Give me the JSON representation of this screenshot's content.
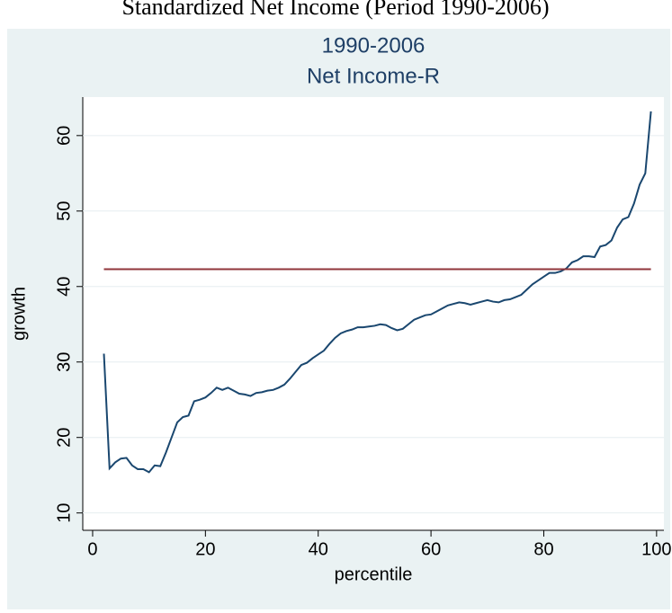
{
  "header": "Standardized Net Income (Period 1990-2006)",
  "chart_data": {
    "type": "line",
    "title": [
      "1990-2006",
      "Net Income-R"
    ],
    "x_label": "percentile",
    "y_label": "growth",
    "xlim": [
      -1.75,
      101.3
    ],
    "ylim": [
      7.7,
      65.1
    ],
    "xticks": [
      0,
      20,
      40,
      60,
      80,
      100
    ],
    "yticks": [
      10,
      20,
      30,
      40,
      50,
      60
    ],
    "grid": true,
    "series": [
      {
        "color": "#1a476f",
        "x": [
          2,
          3,
          4,
          5,
          6,
          7,
          8,
          9,
          10,
          11,
          12,
          13,
          14,
          15,
          16,
          17,
          18,
          19,
          20,
          21,
          22,
          23,
          24,
          25,
          26,
          27,
          28,
          29,
          30,
          31,
          32,
          33,
          34,
          35,
          36,
          37,
          38,
          39,
          40,
          41,
          42,
          43,
          44,
          45,
          46,
          47,
          48,
          49,
          50,
          51,
          52,
          53,
          54,
          55,
          56,
          57,
          58,
          59,
          60,
          61,
          62,
          63,
          64,
          65,
          66,
          67,
          68,
          69,
          70,
          71,
          72,
          73,
          74,
          75,
          76,
          77,
          78,
          79,
          80,
          81,
          82,
          83,
          84,
          85,
          86,
          87,
          88,
          89,
          90,
          91,
          92,
          93,
          94,
          95,
          96,
          97,
          98,
          99
        ],
        "values": [
          31.1,
          15.9,
          16.7,
          17.2,
          17.3,
          16.3,
          15.8,
          15.8,
          15.4,
          16.3,
          16.2,
          18.0,
          20.0,
          22.0,
          22.7,
          22.9,
          24.8,
          25.0,
          25.3,
          25.9,
          26.6,
          26.3,
          26.6,
          26.2,
          25.8,
          25.7,
          25.5,
          25.9,
          26.0,
          26.2,
          26.3,
          26.6,
          27.0,
          27.8,
          28.7,
          29.6,
          29.9,
          30.5,
          31.0,
          31.5,
          32.4,
          33.2,
          33.8,
          34.1,
          34.3,
          34.6,
          34.6,
          34.7,
          34.8,
          35.0,
          34.9,
          34.5,
          34.2,
          34.4,
          35.0,
          35.6,
          35.9,
          36.2,
          36.3,
          36.7,
          37.1,
          37.5,
          37.7,
          37.9,
          37.8,
          37.6,
          37.8,
          38.0,
          38.2,
          38.0,
          37.9,
          38.2,
          38.3,
          38.6,
          38.9,
          39.6,
          40.3,
          40.8,
          41.3,
          41.8,
          41.8,
          42.0,
          42.4,
          43.2,
          43.5,
          44.0,
          44.0,
          43.9,
          45.3,
          45.5,
          46.1,
          47.8,
          48.9,
          49.2,
          51.0,
          53.5,
          55.0,
          63.2
        ]
      },
      {
        "color": "#90353b",
        "x": [
          2,
          99
        ],
        "values": [
          42.3,
          42.3
        ]
      }
    ]
  }
}
